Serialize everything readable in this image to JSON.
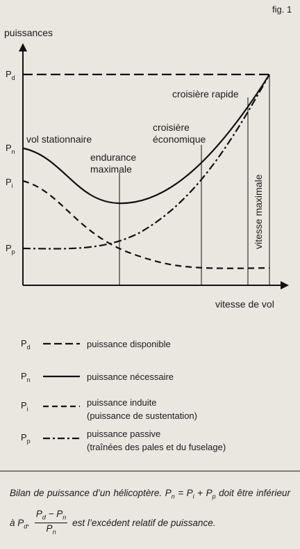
{
  "figure_label": "fig. 1",
  "axes": {
    "y_label": "puissances",
    "x_label": "vitesse de vol"
  },
  "y_markers": [
    {
      "symbol": "P",
      "subscript": "d"
    },
    {
      "symbol": "P",
      "subscript": "n"
    },
    {
      "symbol": "P",
      "subscript": "i"
    },
    {
      "symbol": "P",
      "subscript": "p"
    }
  ],
  "annotations": {
    "hover": "vol stationnaire",
    "endurance": [
      "endurance",
      "maximale"
    ],
    "economic": [
      "croisière",
      "économique"
    ],
    "fast": "croisière rapide",
    "max_speed": "vitesse maximale"
  },
  "legend": [
    {
      "symbol": "P",
      "subscript": "d",
      "label": "puissance disponible"
    },
    {
      "symbol": "P",
      "subscript": "n",
      "label": "puissance nécessaire"
    },
    {
      "symbol": "P",
      "subscript": "i",
      "label": "puissance induite",
      "note": "(puissance de sustentation)"
    },
    {
      "symbol": "P",
      "subscript": "p",
      "label": "puissance passive",
      "note": "(traînées des pales et du fuselage)"
    }
  ],
  "caption": {
    "intro": "Bilan de puissance d’un hélicoptère.",
    "equation": {
      "lhs": {
        "symbol": "P",
        "subscript": "n"
      },
      "equals": "=",
      "term1": {
        "symbol": "P",
        "subscript": "i"
      },
      "plus": "+",
      "term2": {
        "symbol": "P",
        "subscript": "p"
      }
    },
    "condition": "doit être inférieur à",
    "limit": {
      "symbol": "P",
      "subscript": "d"
    },
    "fraction": {
      "num_a": {
        "symbol": "P",
        "subscript": "d"
      },
      "minus": "−",
      "num_b": {
        "symbol": "P",
        "subscript": "n"
      },
      "den": {
        "symbol": "P",
        "subscript": "n"
      }
    },
    "conclusion": "est l’excédent relatif de puissance."
  }
}
